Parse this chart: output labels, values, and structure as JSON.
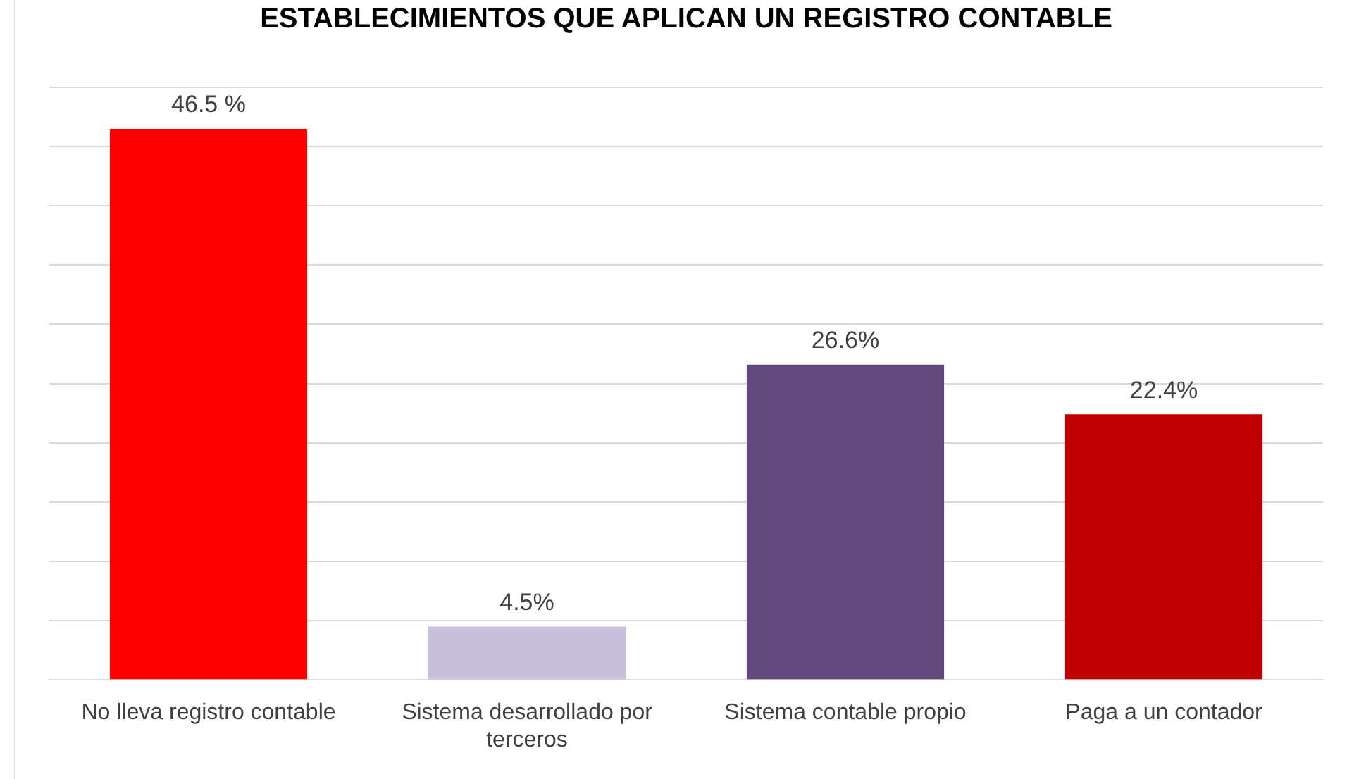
{
  "chart_data": {
    "type": "bar",
    "title": "ESTABLECIMIENTOS QUE APLICAN UN REGISTRO CONTABLE",
    "categories": [
      "No lleva registro contable",
      "Sistema desarrollado por terceros",
      "Sistema contable propio",
      "Paga a un contador"
    ],
    "values": [
      46.5,
      4.5,
      26.6,
      22.4
    ],
    "colors": [
      "#ff0000",
      "#c9c0dc",
      "#604a7b",
      "#c00000"
    ],
    "value_labels": [
      "46.5 %",
      "4.5%",
      "26.6%",
      "22.4%"
    ],
    "ylim": [
      0,
      50
    ],
    "yticks": [
      {
        "value": 0,
        "label": null
      },
      {
        "value": 5,
        "label": null
      },
      {
        "value": 10,
        "label": null
      },
      {
        "value": 15,
        "label": null
      },
      {
        "value": 20,
        "label": null
      },
      {
        "value": 25,
        "label": null
      },
      {
        "value": 30,
        "label": null
      },
      {
        "value": 35,
        "label": null
      },
      {
        "value": 40,
        "label": null
      },
      {
        "value": 45,
        "label": null
      },
      {
        "value": 50,
        "label": null
      }
    ],
    "grid": "y",
    "legend": false,
    "tick_labels": "x"
  }
}
